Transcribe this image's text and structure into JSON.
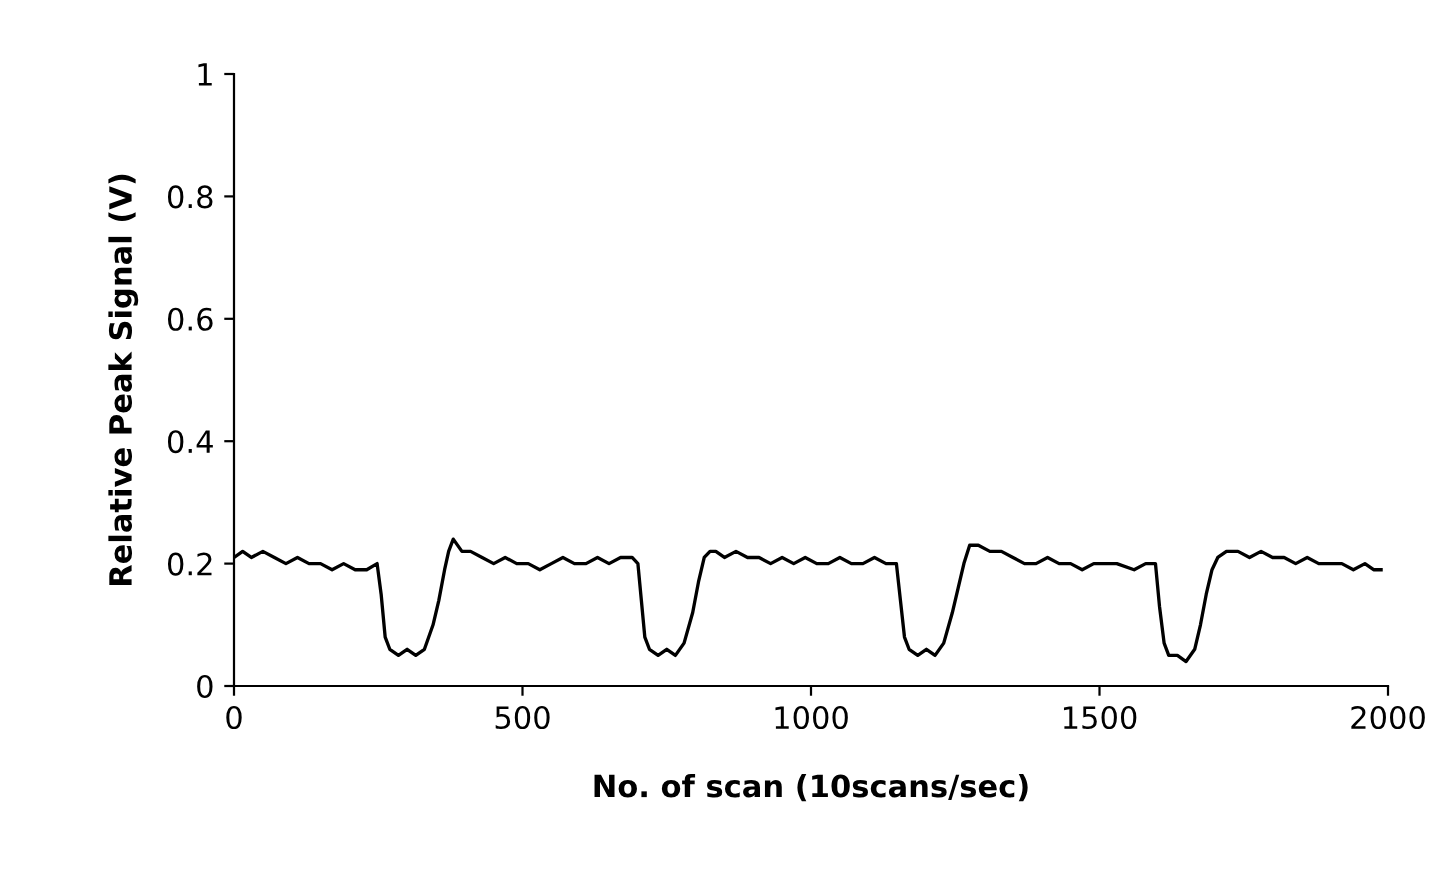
{
  "chart_data": {
    "type": "line",
    "xlabel": "No. of scan (10scans/sec)",
    "ylabel": "Relative Peak Signal (V)",
    "xlim": [
      0,
      2000
    ],
    "xticks": [
      0,
      500,
      1000,
      1500,
      2000
    ],
    "ylim": [
      0,
      1
    ],
    "yticks": [
      0,
      0.2,
      0.4,
      0.6,
      0.8,
      1
    ],
    "marker": "none",
    "line_style": "solid",
    "series": [
      {
        "color": "#000000",
        "x": [
          0,
          15,
          30,
          50,
          70,
          90,
          110,
          130,
          150,
          170,
          190,
          210,
          230,
          248,
          255,
          262,
          270,
          285,
          300,
          315,
          330,
          345,
          355,
          365,
          372,
          380,
          395,
          410,
          430,
          450,
          470,
          490,
          510,
          530,
          550,
          570,
          590,
          610,
          630,
          650,
          670,
          690,
          700,
          706,
          712,
          720,
          735,
          750,
          765,
          780,
          795,
          805,
          815,
          825,
          835,
          850,
          870,
          890,
          910,
          930,
          950,
          970,
          990,
          1010,
          1030,
          1050,
          1070,
          1090,
          1110,
          1130,
          1148,
          1155,
          1162,
          1170,
          1185,
          1200,
          1215,
          1230,
          1245,
          1255,
          1265,
          1275,
          1290,
          1310,
          1330,
          1350,
          1370,
          1390,
          1410,
          1430,
          1450,
          1470,
          1490,
          1510,
          1530,
          1560,
          1580,
          1597,
          1604,
          1612,
          1620,
          1635,
          1650,
          1665,
          1675,
          1685,
          1695,
          1705,
          1720,
          1740,
          1760,
          1780,
          1800,
          1820,
          1840,
          1860,
          1880,
          1900,
          1920,
          1940,
          1960,
          1975,
          1988
        ],
        "values": [
          0.21,
          0.22,
          0.21,
          0.22,
          0.21,
          0.2,
          0.21,
          0.2,
          0.2,
          0.19,
          0.2,
          0.19,
          0.19,
          0.2,
          0.15,
          0.08,
          0.06,
          0.05,
          0.06,
          0.05,
          0.06,
          0.1,
          0.14,
          0.19,
          0.22,
          0.24,
          0.22,
          0.22,
          0.21,
          0.2,
          0.21,
          0.2,
          0.2,
          0.19,
          0.2,
          0.21,
          0.2,
          0.2,
          0.21,
          0.2,
          0.21,
          0.21,
          0.2,
          0.14,
          0.08,
          0.06,
          0.05,
          0.06,
          0.05,
          0.07,
          0.12,
          0.17,
          0.21,
          0.22,
          0.22,
          0.21,
          0.22,
          0.21,
          0.21,
          0.2,
          0.21,
          0.2,
          0.21,
          0.2,
          0.2,
          0.21,
          0.2,
          0.2,
          0.21,
          0.2,
          0.2,
          0.14,
          0.08,
          0.06,
          0.05,
          0.06,
          0.05,
          0.07,
          0.12,
          0.16,
          0.2,
          0.23,
          0.23,
          0.22,
          0.22,
          0.21,
          0.2,
          0.2,
          0.21,
          0.2,
          0.2,
          0.19,
          0.2,
          0.2,
          0.2,
          0.19,
          0.2,
          0.2,
          0.13,
          0.07,
          0.05,
          0.05,
          0.04,
          0.06,
          0.1,
          0.15,
          0.19,
          0.21,
          0.22,
          0.22,
          0.21,
          0.22,
          0.21,
          0.21,
          0.2,
          0.21,
          0.2,
          0.2,
          0.2,
          0.19,
          0.2,
          0.19,
          0.19
        ]
      }
    ]
  }
}
